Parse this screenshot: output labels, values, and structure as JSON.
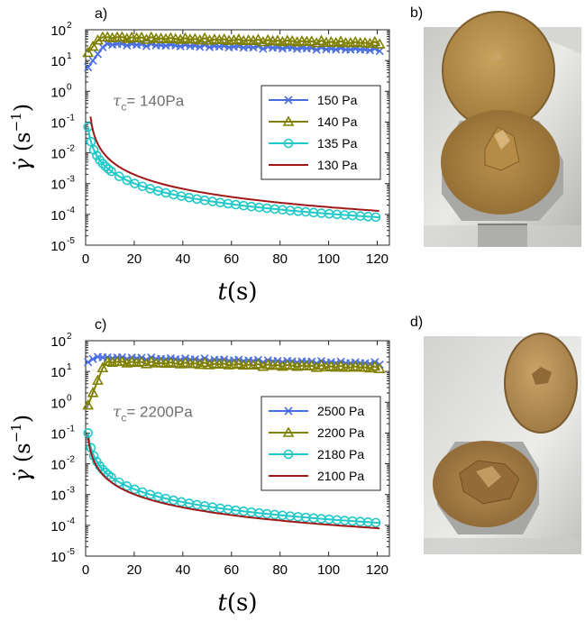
{
  "chart_data": [
    {
      "panel": "a)",
      "type": "line",
      "xlabel_var": "t",
      "xlabel_unit": "(s)",
      "ylabel_var": "γ̇",
      "ylabel_unit_base": "(s",
      "ylabel_unit_exp": "−1",
      "ylabel_unit_close": ")",
      "xlim": [
        0,
        125
      ],
      "ylim": [
        1e-05,
        100
      ],
      "yscale": "log",
      "xticks": [
        "0",
        "20",
        "40",
        "60",
        "80",
        "100",
        "120"
      ],
      "yticks": [
        {
          "base": "10",
          "exp": "2",
          "value": 100
        },
        {
          "base": "10",
          "exp": "1",
          "value": 10
        },
        {
          "base": "10",
          "exp": "0",
          "value": 1
        },
        {
          "base": "10",
          "exp": "-1",
          "value": 0.1
        },
        {
          "base": "10",
          "exp": "-2",
          "value": 0.01
        },
        {
          "base": "10",
          "exp": "-3",
          "value": 0.001
        },
        {
          "base": "10",
          "exp": "-4",
          "value": 0.0001
        },
        {
          "base": "10",
          "exp": "-5",
          "value": 1e-05
        }
      ],
      "annotation": {
        "prefix": "τ",
        "sub": "c",
        "value": "= 140Pa"
      },
      "legend_position": "center-right",
      "series": [
        {
          "name": "150 Pa",
          "color": "#4a6ee0",
          "marker": "x",
          "kind": "jump",
          "start": 6,
          "jump_end": 8,
          "plateau": 30
        },
        {
          "name": "140 Pa",
          "color": "#808000",
          "marker": "triangle",
          "kind": "jump",
          "start": 18,
          "jump_end": 6,
          "plateau": 50
        },
        {
          "name": "135 Pa",
          "color": "#20c8c8",
          "marker": "circle",
          "kind": "decay",
          "x0": 1,
          "A": 0.07,
          "n": 1.8,
          "end": 8e-05
        },
        {
          "name": "130 Pa",
          "color": "#a01818",
          "marker": "none",
          "kind": "decay",
          "x0": 2,
          "A": 0.15,
          "n": 1.9,
          "end": 0.00013
        }
      ]
    },
    {
      "panel": "c)",
      "type": "line",
      "xlabel_var": "t",
      "xlabel_unit": "(s)",
      "ylabel_var": "γ̇",
      "ylabel_unit_base": "(s",
      "ylabel_unit_exp": "−1",
      "ylabel_unit_close": ")",
      "xlim": [
        0,
        125
      ],
      "ylim": [
        1e-05,
        100
      ],
      "yscale": "log",
      "xticks": [
        "0",
        "20",
        "40",
        "60",
        "80",
        "100",
        "120"
      ],
      "yticks": [
        {
          "base": "10",
          "exp": "2",
          "value": 100
        },
        {
          "base": "10",
          "exp": "1",
          "value": 10
        },
        {
          "base": "10",
          "exp": "0",
          "value": 1
        },
        {
          "base": "10",
          "exp": "-1",
          "value": 0.1
        },
        {
          "base": "10",
          "exp": "-2",
          "value": 0.01
        },
        {
          "base": "10",
          "exp": "-3",
          "value": 0.001
        },
        {
          "base": "10",
          "exp": "-4",
          "value": 0.0001
        },
        {
          "base": "10",
          "exp": "-5",
          "value": 1e-05
        }
      ],
      "annotation": {
        "prefix": "τ",
        "sub": "c",
        "value": "= 2200Pa"
      },
      "legend_position": "center-right",
      "series": [
        {
          "name": "2500 Pa",
          "color": "#4a6ee0",
          "marker": "x",
          "kind": "jump",
          "start": 20,
          "jump_end": 4,
          "plateau": 25
        },
        {
          "name": "2200 Pa",
          "color": "#808000",
          "marker": "triangle",
          "kind": "jump",
          "start": 0.8,
          "jump_end": 8,
          "plateau": 18
        },
        {
          "name": "2180 Pa",
          "color": "#20c8c8",
          "marker": "circle",
          "kind": "decay",
          "x0": 1,
          "A": 0.1,
          "n": 1.8,
          "end": 0.00012
        },
        {
          "name": "2100 Pa",
          "color": "#a01818",
          "marker": "none",
          "kind": "decay",
          "x0": 1,
          "A": 0.07,
          "n": 1.85,
          "end": 8e-05
        }
      ]
    }
  ],
  "photos": [
    {
      "label": "b)"
    },
    {
      "label": "d)"
    }
  ]
}
